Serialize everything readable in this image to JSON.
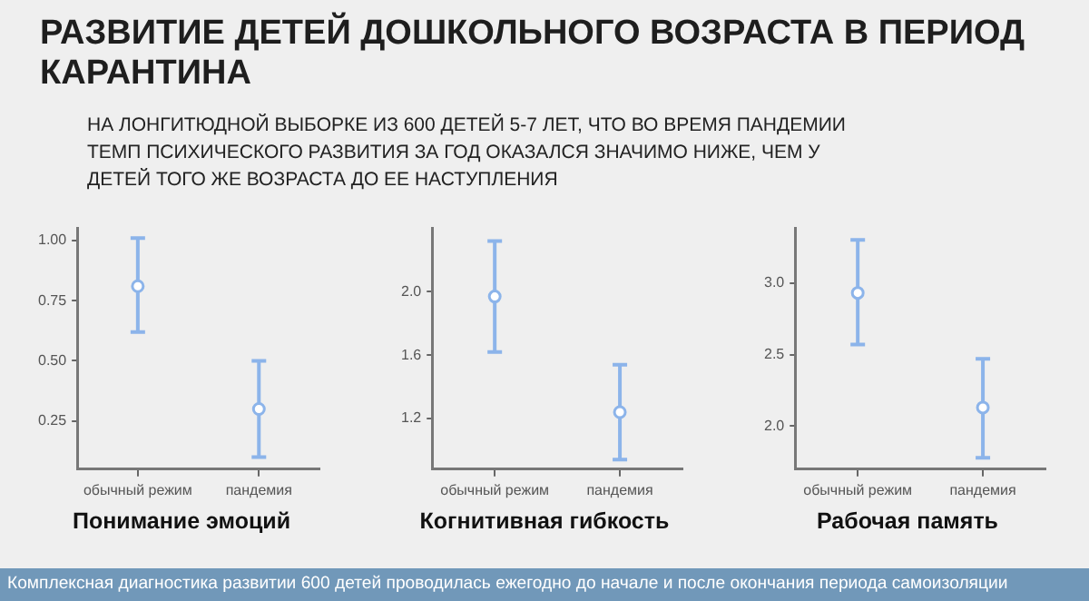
{
  "chart_data": [
    {
      "type": "scatter",
      "title": "РАЗВИТИЕ ДЕТЕЙ ДОШКОЛЬНОГО ВОЗРАСТА В ПЕРИОД КАРАНТИНА",
      "subtitle": "НА ЛОНГИТЮДНОЙ ВЫБОРКЕ ИЗ 600 ДЕТЕЙ 5-7 ЛЕТ, ЧТО ВО ВРЕМЯ ПАНДЕМИИ ТЕМП ПСИХИЧЕСКОГО РАЗВИТИЯ ЗА ГОД ОКАЗАЛСЯ ЗНАЧИМО НИЖЕ, ЧЕМ У ДЕТЕЙ ТОГО ЖЕ ВОЗРАСТА ДО ЕЕ НАСТУПЛЕНИЯ",
      "annotations": [
        "Комплексная диагностика развитии 600 детей проводилась ежегодно до начале и после окончания периода самоизоляции"
      ],
      "xlabel": "Понимание эмоций",
      "categories": [
        "обычный режим",
        "пандемия"
      ],
      "values": [
        0.81,
        0.3
      ],
      "errors": [
        [
          0.62,
          1.01
        ],
        [
          0.1,
          0.5
        ]
      ],
      "color": "#8cb4ea",
      "marker": "circle",
      "ylim": [
        0.05,
        1.05
      ],
      "yticks": [
        {
          "value": 0.25,
          "label": "0.25"
        },
        {
          "value": 0.5,
          "label": "0.50"
        },
        {
          "value": 0.75,
          "label": "0.75"
        },
        {
          "value": 1,
          "label": "1.00"
        }
      ],
      "grid": false
    },
    {
      "type": "scatter",
      "xlabel": "Когнитивная гибкость",
      "categories": [
        "обычный режим",
        "пандемия"
      ],
      "values": [
        1.97,
        1.24
      ],
      "errors": [
        [
          1.62,
          2.32
        ],
        [
          0.94,
          1.54
        ]
      ],
      "color": "#8cb4ea",
      "marker": "circle",
      "ylim": [
        0.88,
        2.4
      ],
      "yticks": [
        {
          "value": 1.2,
          "label": "1.2"
        },
        {
          "value": 1.6,
          "label": "1.6"
        },
        {
          "value": 2,
          "label": "2.0"
        }
      ],
      "grid": false
    },
    {
      "type": "scatter",
      "xlabel": "Рабочая память",
      "categories": [
        "обычный режим",
        "пандемия"
      ],
      "values": [
        2.93,
        2.13
      ],
      "errors": [
        [
          2.57,
          3.3
        ],
        [
          1.78,
          2.47
        ]
      ],
      "color": "#8cb4ea",
      "marker": "circle",
      "ylim": [
        1.7,
        3.38
      ],
      "yticks": [
        {
          "value": 2,
          "label": "2.0"
        },
        {
          "value": 2.5,
          "label": "2.5"
        },
        {
          "value": 3,
          "label": "3.0"
        }
      ],
      "grid": false
    }
  ]
}
